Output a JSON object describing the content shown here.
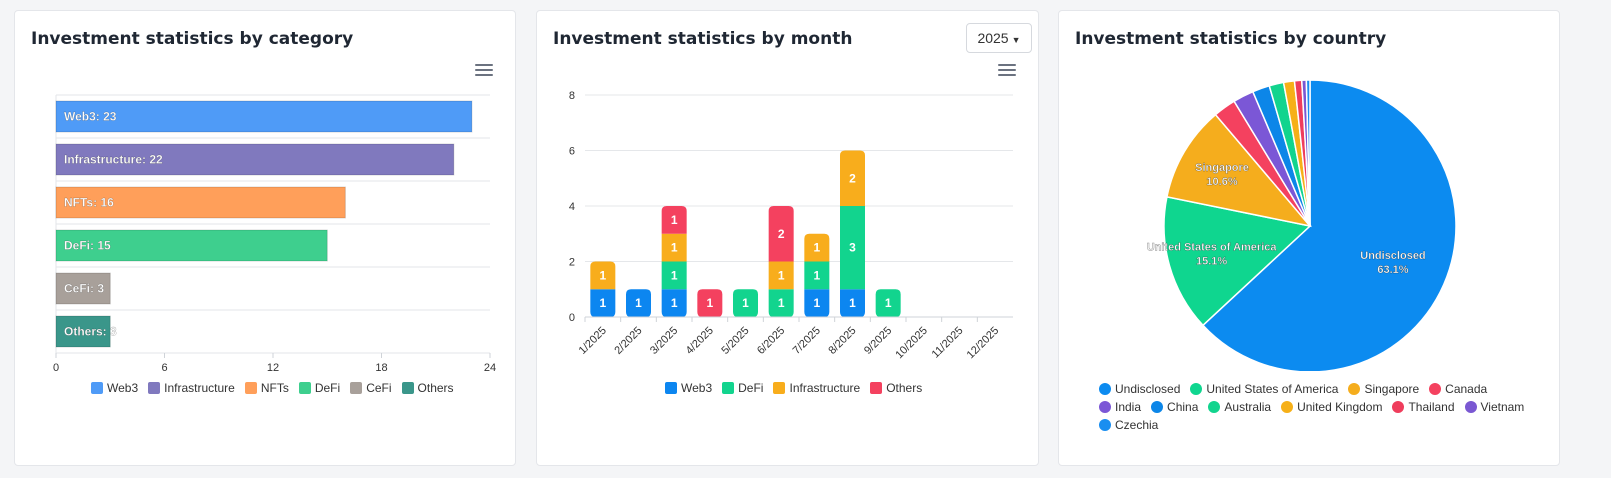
{
  "cards": {
    "category": {
      "title": "Investment statistics by category"
    },
    "month": {
      "title": "Investment statistics by month",
      "year_selected": "2025"
    },
    "country": {
      "title": "Investment statistics by country"
    }
  },
  "chart_data": [
    {
      "type": "bar",
      "orientation": "horizontal",
      "categories": [
        "Web3",
        "Infrastructure",
        "NFTs",
        "DeFi",
        "CeFi",
        "Others"
      ],
      "values": [
        23,
        22,
        16,
        15,
        3,
        3
      ],
      "data_labels": [
        "Web3: 23",
        "Infrastructure: 22",
        "NFTs: 16",
        "DeFi: 15",
        "CeFi: 3",
        "Others: 3"
      ],
      "colors": [
        "#4f9bf7",
        "#8079be",
        "#ff9f5a",
        "#3ecf8e",
        "#a8a09a",
        "#3a968a"
      ],
      "xlim": [
        0,
        24
      ],
      "xticks": [
        "0",
        "6",
        "12",
        "18",
        "24"
      ],
      "grid": true,
      "legend": "bottom",
      "legend_entries": [
        "Web3",
        "Infrastructure",
        "NFTs",
        "DeFi",
        "CeFi",
        "Others"
      ]
    },
    {
      "type": "bar",
      "stacked": true,
      "categories": [
        "1/2025",
        "2/2025",
        "3/2025",
        "4/2025",
        "5/2025",
        "6/2025",
        "7/2025",
        "8/2025",
        "9/2025",
        "10/2025",
        "11/2025",
        "12/2025"
      ],
      "series": [
        {
          "name": "Web3",
          "color": "#0c86f0",
          "values": [
            1,
            1,
            1,
            0,
            0,
            0,
            1,
            1,
            0,
            0,
            0,
            0
          ]
        },
        {
          "name": "DeFi",
          "color": "#12d48e",
          "values": [
            0,
            0,
            1,
            0,
            1,
            1,
            1,
            3,
            1,
            0,
            0,
            0
          ]
        },
        {
          "name": "Infrastructure",
          "color": "#f8ad1c",
          "values": [
            1,
            0,
            1,
            0,
            0,
            1,
            1,
            2,
            0,
            0,
            0,
            0
          ]
        },
        {
          "name": "Others",
          "color": "#f4415f",
          "values": [
            0,
            0,
            1,
            1,
            0,
            2,
            0,
            0,
            0,
            0,
            0,
            0
          ]
        }
      ],
      "ylim": [
        0,
        8
      ],
      "yticks": [
        "0",
        "2",
        "4",
        "6",
        "8"
      ],
      "grid": true,
      "legend": "bottom"
    },
    {
      "type": "pie",
      "labels": [
        "Undisclosed",
        "United States of America",
        "Singapore",
        "Canada",
        "India",
        "China",
        "Australia",
        "United Kingdom",
        "Thailand",
        "Vietnam",
        "Czechia"
      ],
      "values": [
        63.1,
        15.1,
        10.6,
        2.5,
        2.3,
        1.9,
        1.6,
        1.2,
        0.8,
        0.5,
        0.4
      ],
      "colors": [
        "#0c8bf0",
        "#0fd68f",
        "#f5ad1d",
        "#f4415f",
        "#7b57d6",
        "#0c86e8",
        "#12d48e",
        "#f6b018",
        "#ef3d5c",
        "#7a58d2",
        "#1a8ef0"
      ],
      "slice_labels": [
        {
          "name": "Undisclosed",
          "pct": "63.1%"
        },
        {
          "name": "United States of America",
          "pct": "15.1%"
        },
        {
          "name": "Singapore",
          "pct": "10.6%"
        }
      ],
      "legend": "bottom"
    }
  ]
}
